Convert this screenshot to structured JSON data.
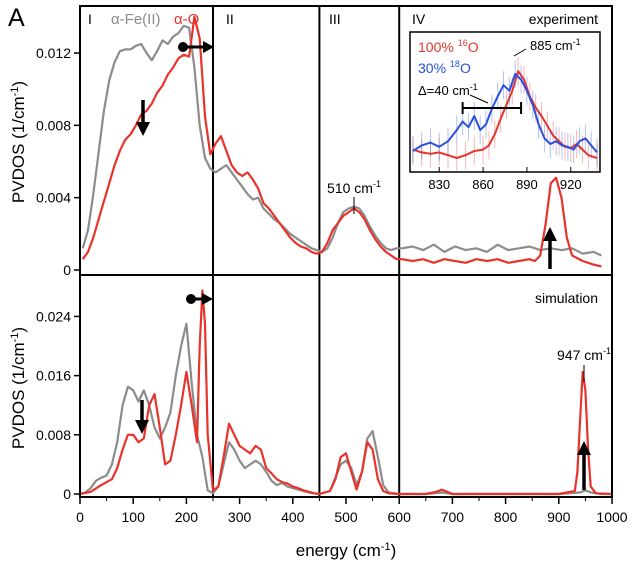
{
  "figure": {
    "panel_letter": "A",
    "xlabel": "energy (cm",
    "xlabel_sup": "-1",
    "xlabel_tail": ")",
    "xticks": [
      "0",
      "100",
      "200",
      "300",
      "400",
      "500",
      "600",
      "700",
      "800",
      "900",
      "1000"
    ],
    "region_labels": [
      "I",
      "II",
      "III",
      "IV"
    ],
    "colors": {
      "red": "#e8332a",
      "gray": "#8c8c8c",
      "blue": "#2a50e0",
      "black": "#000000"
    }
  },
  "chart_data": [
    {
      "type": "line",
      "panel": "top",
      "ylabel": "PVDOS (1/cm",
      "ylabel_sup": "-1",
      "ylabel_tail": ")",
      "xlim": [
        0,
        1000
      ],
      "ylim": [
        0,
        0.0146
      ],
      "yticks": [
        "0",
        "0.004",
        "0.008",
        "0.012"
      ],
      "region_boundaries": [
        250,
        450,
        600
      ],
      "legend": {
        "gray_label": "α-Fe(II)",
        "red_label": "α-O"
      },
      "annotations": {
        "band_label": "510 cm",
        "band_label_sup": "-1",
        "corner_label": "experiment"
      },
      "series": [
        {
          "name": "α-Fe(II)",
          "color": "#8c8c8c",
          "x": [
            5,
            15,
            25,
            35,
            45,
            55,
            65,
            75,
            85,
            95,
            105,
            115,
            125,
            135,
            145,
            155,
            165,
            175,
            185,
            195,
            205,
            215,
            225,
            235,
            245,
            255,
            265,
            275,
            285,
            295,
            305,
            315,
            325,
            335,
            345,
            355,
            365,
            375,
            385,
            395,
            405,
            415,
            425,
            435,
            445,
            455,
            465,
            475,
            485,
            495,
            505,
            515,
            525,
            535,
            545,
            555,
            565,
            575,
            585,
            595,
            605,
            625,
            645,
            665,
            685,
            705,
            725,
            745,
            765,
            785,
            805,
            825,
            845,
            865,
            885,
            905,
            925,
            945,
            965,
            980
          ],
          "y": [
            0.0012,
            0.0022,
            0.0042,
            0.0065,
            0.0088,
            0.0105,
            0.0115,
            0.0121,
            0.0122,
            0.0122,
            0.0124,
            0.0125,
            0.012,
            0.0116,
            0.0121,
            0.0127,
            0.0125,
            0.0129,
            0.0131,
            0.0135,
            0.0134,
            0.0112,
            0.008,
            0.0062,
            0.0056,
            0.0054,
            0.0056,
            0.0058,
            0.0054,
            0.005,
            0.0046,
            0.0042,
            0.0039,
            0.004,
            0.0034,
            0.0031,
            0.0028,
            0.0026,
            0.0023,
            0.002,
            0.0018,
            0.0016,
            0.0014,
            0.0012,
            0.0011,
            0.001,
            0.0012,
            0.0018,
            0.0026,
            0.0032,
            0.0034,
            0.0035,
            0.0034,
            0.003,
            0.0024,
            0.0019,
            0.0015,
            0.0012,
            0.0011,
            0.0012,
            0.0012,
            0.0013,
            0.0011,
            0.0014,
            0.001,
            0.0013,
            0.0011,
            0.0012,
            0.001,
            0.0014,
            0.0011,
            0.0012,
            0.0013,
            0.0011,
            0.0012,
            0.0011,
            0.0012,
            0.0009,
            0.001,
            0.0008
          ]
        },
        {
          "name": "α-O",
          "color": "#e8332a",
          "x": [
            5,
            15,
            25,
            35,
            45,
            55,
            65,
            75,
            85,
            95,
            105,
            115,
            125,
            135,
            145,
            155,
            165,
            175,
            185,
            195,
            205,
            215,
            225,
            235,
            245,
            255,
            265,
            275,
            285,
            295,
            305,
            315,
            325,
            335,
            345,
            355,
            365,
            375,
            385,
            395,
            405,
            415,
            425,
            435,
            445,
            455,
            465,
            475,
            485,
            495,
            505,
            515,
            525,
            535,
            545,
            555,
            565,
            575,
            585,
            595,
            605,
            625,
            645,
            665,
            685,
            705,
            725,
            745,
            765,
            785,
            805,
            825,
            845,
            855,
            865,
            875,
            885,
            895,
            905,
            915,
            925,
            945,
            965,
            980
          ],
          "y": [
            0.0006,
            0.001,
            0.0018,
            0.0028,
            0.0038,
            0.0048,
            0.0058,
            0.0066,
            0.0072,
            0.0075,
            0.008,
            0.0086,
            0.0088,
            0.0092,
            0.0098,
            0.0102,
            0.0108,
            0.0112,
            0.0117,
            0.0119,
            0.0118,
            0.014,
            0.0128,
            0.0085,
            0.0064,
            0.007,
            0.0074,
            0.0066,
            0.0058,
            0.0054,
            0.0052,
            0.0054,
            0.005,
            0.0045,
            0.0037,
            0.0034,
            0.003,
            0.0026,
            0.0022,
            0.0018,
            0.0015,
            0.0013,
            0.0012,
            0.001,
            0.0009,
            0.001,
            0.0015,
            0.0022,
            0.0026,
            0.003,
            0.0032,
            0.0034,
            0.0032,
            0.0028,
            0.0022,
            0.0017,
            0.0013,
            0.001,
            0.0008,
            0.0006,
            0.0006,
            0.0005,
            0.0006,
            0.0004,
            0.0006,
            0.0005,
            0.0004,
            0.0006,
            0.0005,
            0.0006,
            0.0004,
            0.0005,
            0.0006,
            0.0005,
            0.0008,
            0.0025,
            0.0048,
            0.0051,
            0.004,
            0.0018,
            0.0008,
            0.0005,
            0.0003,
            0.0002
          ]
        }
      ]
    },
    {
      "type": "line",
      "panel": "inset",
      "xlim": [
        810,
        940
      ],
      "xticks": [
        "830",
        "860",
        "890",
        "920"
      ],
      "legend": {
        "red_label": "100% ",
        "red_sup": "16",
        "red_tail": "O",
        "blue_label": "30% ",
        "blue_sup": "18",
        "blue_tail": "O"
      },
      "annotations": {
        "peak_label": "885 cm",
        "peak_label_sup": "-1",
        "delta_label": "Δ=40 cm",
        "delta_label_sup": "-1",
        "delta_bar_x": [
          846,
          886
        ]
      },
      "series": [
        {
          "name": "100% 16O",
          "color": "#e8332a",
          "x": [
            812,
            818,
            824,
            830,
            836,
            842,
            848,
            854,
            860,
            864,
            868,
            872,
            876,
            880,
            884,
            888,
            892,
            896,
            900,
            904,
            908,
            912,
            916,
            920,
            924,
            928,
            932,
            938
          ],
          "y": [
            0.16,
            0.14,
            0.13,
            0.14,
            0.12,
            0.1,
            0.12,
            0.15,
            0.16,
            0.19,
            0.27,
            0.38,
            0.48,
            0.58,
            0.72,
            0.66,
            0.54,
            0.46,
            0.4,
            0.33,
            0.26,
            0.22,
            0.18,
            0.17,
            0.2,
            0.16,
            0.12,
            0.1
          ]
        },
        {
          "name": "30% 18O",
          "color": "#2a50e0",
          "x": [
            812,
            818,
            824,
            830,
            836,
            842,
            846,
            850,
            854,
            858,
            862,
            866,
            870,
            874,
            878,
            882,
            886,
            890,
            894,
            898,
            902,
            906,
            910,
            914,
            918,
            922,
            926,
            930,
            934,
            938
          ],
          "y": [
            0.15,
            0.19,
            0.21,
            0.18,
            0.22,
            0.3,
            0.36,
            0.32,
            0.4,
            0.3,
            0.34,
            0.45,
            0.54,
            0.62,
            0.58,
            0.7,
            0.66,
            0.58,
            0.48,
            0.34,
            0.24,
            0.2,
            0.22,
            0.19,
            0.18,
            0.16,
            0.22,
            0.24,
            0.19,
            0.14
          ]
        }
      ]
    },
    {
      "type": "line",
      "panel": "bottom",
      "ylabel": "PVDOS (1/cm",
      "ylabel_sup": "-1",
      "ylabel_tail": ")",
      "xlim": [
        0,
        1000
      ],
      "ylim": [
        0,
        0.0296
      ],
      "yticks": [
        "0",
        "0.008",
        "0.016",
        "0.024"
      ],
      "region_boundaries": [
        250,
        450,
        600
      ],
      "annotations": {
        "peak_label": "947 cm",
        "peak_label_sup": "-1",
        "corner_label": "simulation"
      },
      "series": [
        {
          "name": "α-Fe(II)",
          "color": "#8c8c8c",
          "x": [
            0,
            10,
            20,
            30,
            40,
            50,
            60,
            70,
            80,
            90,
            100,
            110,
            120,
            130,
            140,
            150,
            160,
            170,
            180,
            190,
            200,
            210,
            220,
            230,
            240,
            250,
            260,
            270,
            280,
            290,
            300,
            310,
            320,
            330,
            340,
            350,
            360,
            370,
            380,
            390,
            400,
            410,
            420,
            430,
            440,
            450,
            470,
            490,
            500,
            510,
            520,
            530,
            540,
            550,
            560,
            570,
            580,
            600,
            650,
            680,
            700,
            800,
            900,
            940,
            950,
            960,
            980,
            1000
          ],
          "y": [
            0,
            0.0002,
            0.0008,
            0.0018,
            0.0022,
            0.0025,
            0.004,
            0.007,
            0.012,
            0.0145,
            0.014,
            0.0125,
            0.014,
            0.012,
            0.009,
            0.0075,
            0.009,
            0.011,
            0.016,
            0.02,
            0.023,
            0.015,
            0.008,
            0.005,
            0.0005,
            0.0001,
            0.001,
            0.004,
            0.007,
            0.006,
            0.0045,
            0.0035,
            0.004,
            0.0045,
            0.004,
            0.003,
            0.0018,
            0.0012,
            0.0015,
            0.001,
            0.0008,
            0.0006,
            0.0004,
            0.0002,
            0.0001,
            0,
            0.0004,
            0.004,
            0.0045,
            0.0035,
            0.0012,
            0.003,
            0.0075,
            0.0085,
            0.005,
            0.0012,
            0.0002,
            0,
            0,
            0.0002,
            0,
            0,
            0,
            0.0002,
            0.0005,
            0.0002,
            0,
            0
          ]
        },
        {
          "name": "α-O",
          "color": "#e8332a",
          "x": [
            0,
            20,
            40,
            60,
            70,
            80,
            90,
            100,
            110,
            120,
            130,
            140,
            150,
            160,
            170,
            180,
            190,
            200,
            210,
            220,
            225,
            230,
            235,
            240,
            250,
            260,
            270,
            280,
            290,
            300,
            310,
            320,
            330,
            340,
            350,
            360,
            370,
            380,
            390,
            400,
            410,
            420,
            430,
            440,
            450,
            470,
            480,
            490,
            500,
            510,
            520,
            530,
            540,
            550,
            560,
            570,
            580,
            600,
            650,
            670,
            680,
            690,
            700,
            800,
            900,
            930,
            935,
            940,
            945,
            950,
            955,
            960,
            970,
            1000
          ],
          "y": [
            0,
            0.0003,
            0.0012,
            0.002,
            0.0035,
            0.006,
            0.008,
            0.008,
            0.007,
            0.0075,
            0.012,
            0.0135,
            0.009,
            0.004,
            0.0045,
            0.008,
            0.012,
            0.0165,
            0.012,
            0.007,
            0.02,
            0.0275,
            0.023,
            0.008,
            0.0005,
            0.001,
            0.005,
            0.0095,
            0.008,
            0.0065,
            0.006,
            0.0055,
            0.0065,
            0.006,
            0.0035,
            0.0028,
            0.002,
            0.0016,
            0.0014,
            0.001,
            0.0008,
            0.0005,
            0.0003,
            0.0001,
            0,
            0.0004,
            0.002,
            0.005,
            0.0055,
            0.003,
            0.0006,
            0.003,
            0.007,
            0.006,
            0.002,
            0.0004,
            0.0001,
            0,
            0,
            0.0003,
            0.0006,
            0.0003,
            0,
            0,
            0,
            0.0004,
            0.003,
            0.01,
            0.0165,
            0.014,
            0.006,
            0.001,
            0.0001,
            0
          ]
        }
      ]
    }
  ]
}
